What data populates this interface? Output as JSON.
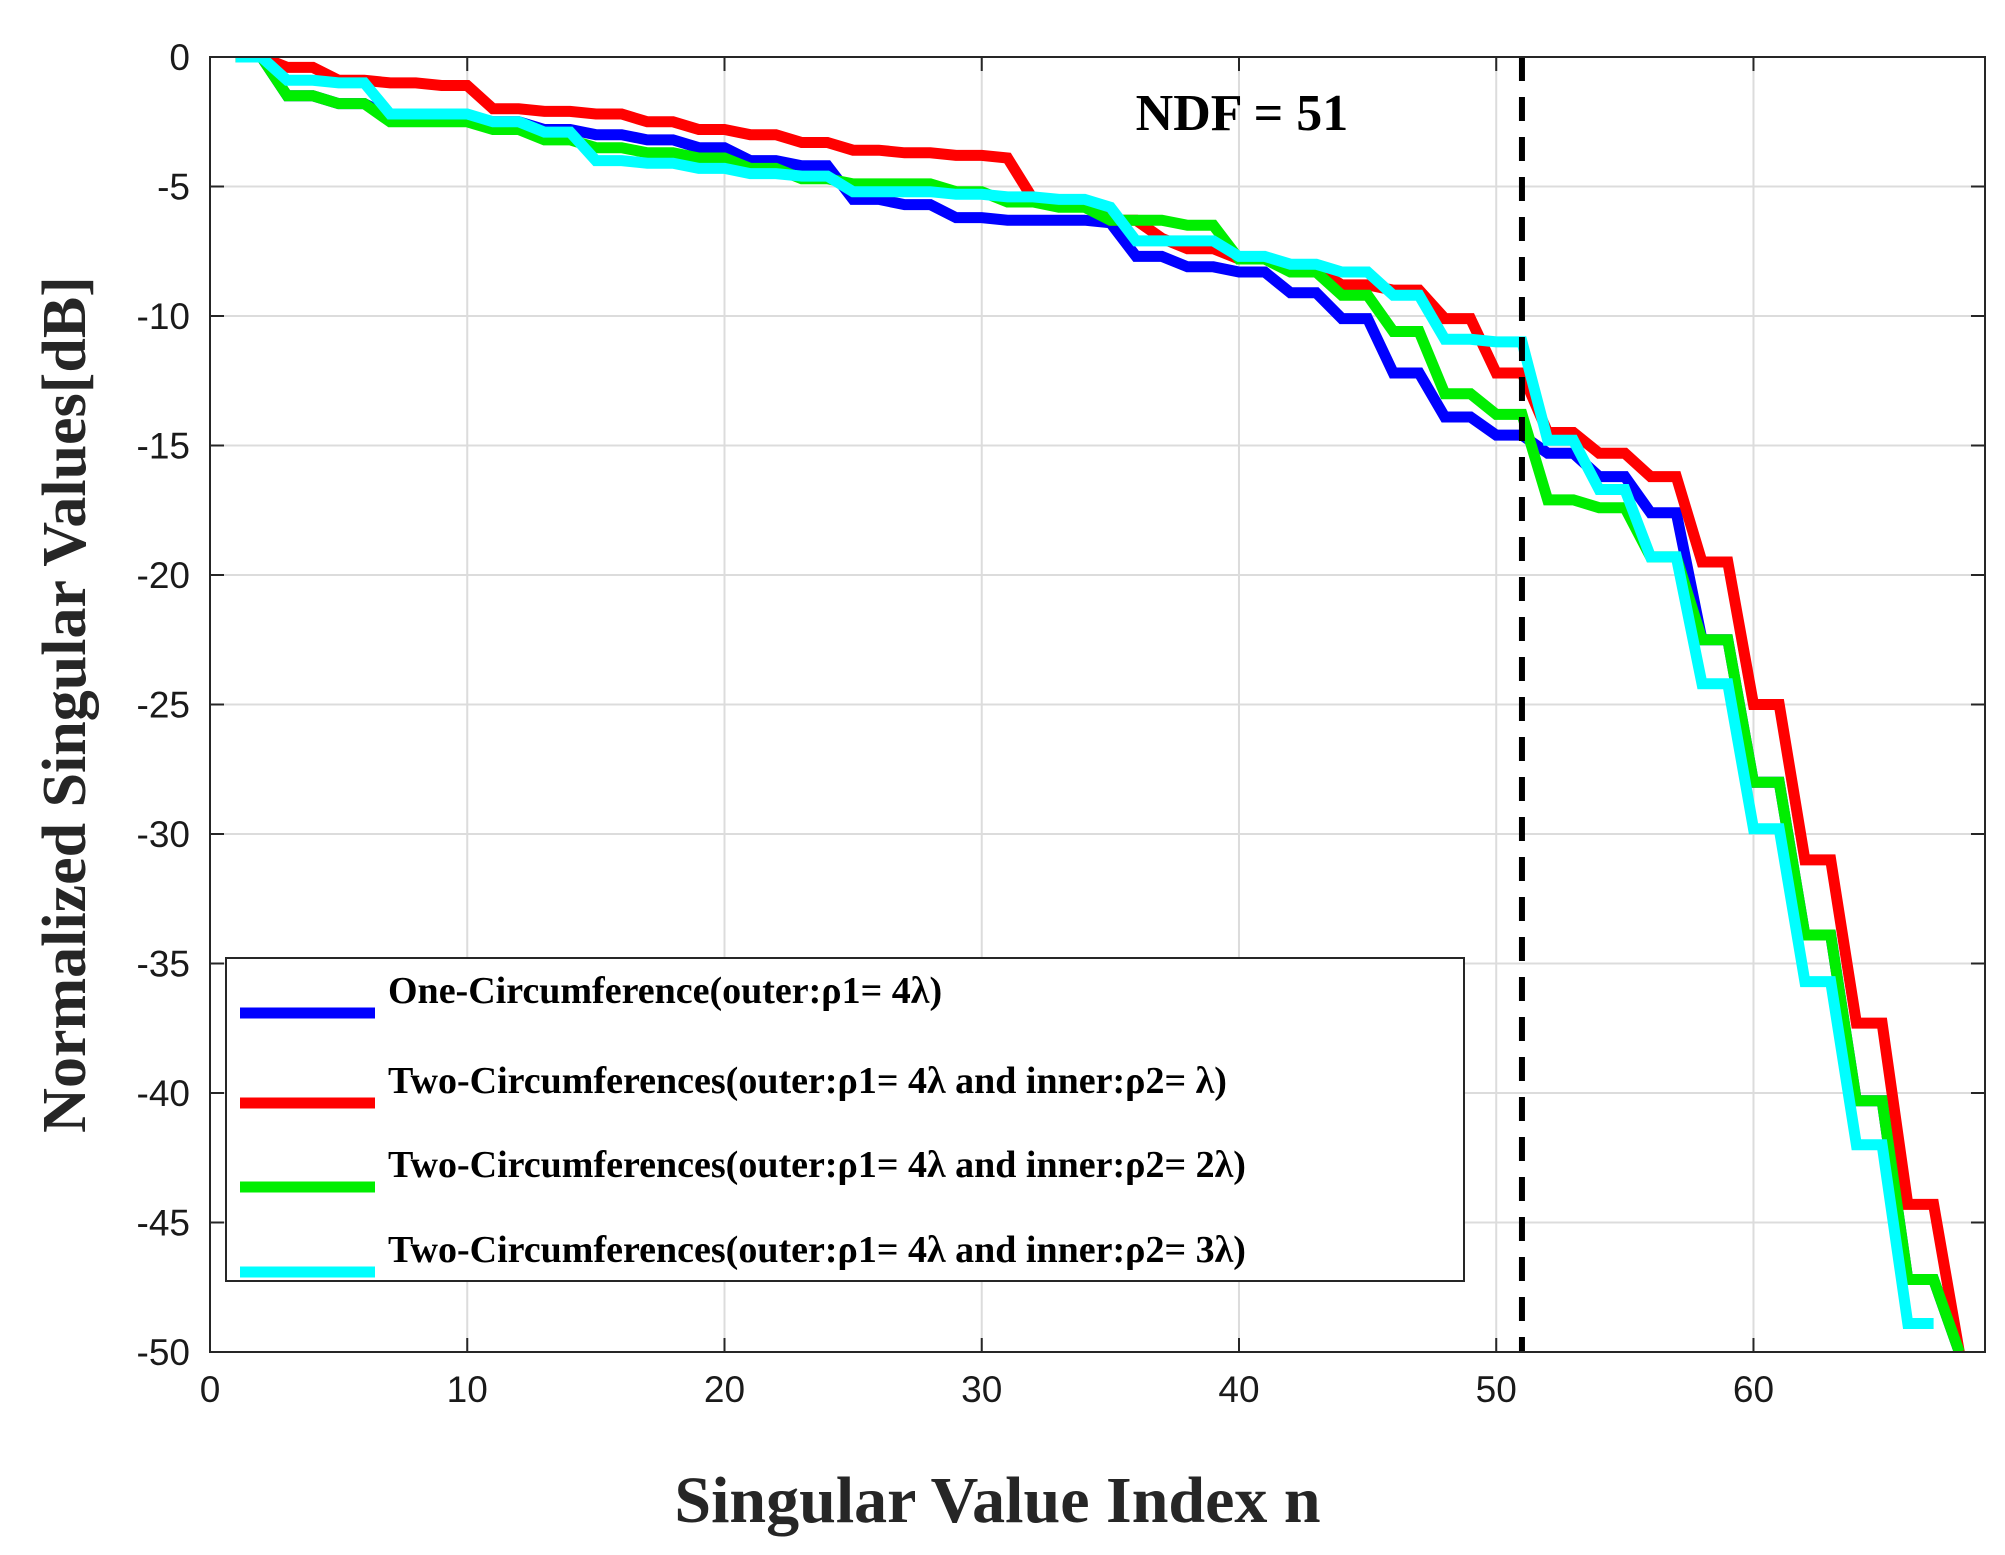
{
  "chart_data": {
    "type": "line",
    "xlabel": "Singular Value Index n",
    "ylabel": "Normalized Singular Values[dB]",
    "xlim": [
      0,
      69
    ],
    "ylim": [
      -50,
      0
    ],
    "xticks": [
      0,
      10,
      20,
      30,
      40,
      50,
      60
    ],
    "yticks": [
      0,
      -5,
      -10,
      -15,
      -20,
      -25,
      -30,
      -35,
      -40,
      -45,
      -50
    ],
    "grid": true,
    "legend_position": "bottom-left",
    "annotation": {
      "text": "NDF = 51",
      "x": 51
    },
    "reference_line": {
      "x": 51,
      "style": "dashed",
      "color": "#000000"
    },
    "series": [
      {
        "name": "One-Circumference(outer:ρ1= 4λ)",
        "color": "#0000ff",
        "x": [
          1,
          2,
          3,
          4,
          5,
          6,
          7,
          8,
          9,
          10,
          11,
          12,
          13,
          14,
          15,
          16,
          17,
          18,
          19,
          20,
          21,
          22,
          23,
          24,
          25,
          26,
          27,
          28,
          29,
          30,
          31,
          32,
          33,
          34,
          35,
          36,
          37,
          38,
          39,
          40,
          41,
          42,
          43,
          44,
          45,
          46,
          47,
          48,
          49,
          50,
          51,
          52,
          53,
          54,
          55,
          56,
          57,
          58,
          59,
          60,
          61,
          62,
          63,
          64,
          65,
          66,
          67,
          68
        ],
        "values": [
          0,
          0,
          -1.5,
          -1.5,
          -1.8,
          -1.8,
          -2.3,
          -2.3,
          -2.3,
          -2.3,
          -2.5,
          -2.5,
          -2.8,
          -2.8,
          -3.0,
          -3.0,
          -3.2,
          -3.2,
          -3.5,
          -3.5,
          -4.0,
          -4.0,
          -4.2,
          -4.2,
          -5.5,
          -5.5,
          -5.7,
          -5.7,
          -6.2,
          -6.2,
          -6.3,
          -6.3,
          -6.3,
          -6.3,
          -6.4,
          -7.7,
          -7.7,
          -8.1,
          -8.1,
          -8.3,
          -8.3,
          -9.1,
          -9.1,
          -10.1,
          -10.1,
          -12.2,
          -12.2,
          -13.9,
          -13.9,
          -14.6,
          -14.6,
          -15.3,
          -15.3,
          -16.2,
          -16.2,
          -17.6,
          -17.6,
          -22.5,
          -22.5,
          -28.0,
          -28.0,
          -33.9,
          -33.9,
          -40.3,
          -40.3,
          -47.2,
          -47.2,
          -50
        ]
      },
      {
        "name": "Two-Circumferences(outer:ρ1= 4λ and inner:ρ2= λ)",
        "color": "#ff0000",
        "x": [
          1,
          2,
          3,
          4,
          5,
          6,
          7,
          8,
          9,
          10,
          11,
          12,
          13,
          14,
          15,
          16,
          17,
          18,
          19,
          20,
          21,
          22,
          23,
          24,
          25,
          26,
          27,
          28,
          29,
          30,
          31,
          32,
          33,
          34,
          35,
          36,
          37,
          38,
          39,
          40,
          41,
          42,
          43,
          44,
          45,
          46,
          47,
          48,
          49,
          50,
          51,
          52,
          53,
          54,
          55,
          56,
          57,
          58,
          59,
          60,
          61,
          62,
          63,
          64,
          65,
          66,
          67,
          68
        ],
        "values": [
          0,
          0,
          -0.4,
          -0.4,
          -0.9,
          -0.9,
          -1.0,
          -1.0,
          -1.1,
          -1.1,
          -2.0,
          -2.0,
          -2.1,
          -2.1,
          -2.2,
          -2.2,
          -2.5,
          -2.5,
          -2.8,
          -2.8,
          -3.0,
          -3.0,
          -3.3,
          -3.3,
          -3.6,
          -3.6,
          -3.7,
          -3.7,
          -3.8,
          -3.8,
          -3.9,
          -5.5,
          -5.7,
          -5.7,
          -6.3,
          -6.3,
          -7.0,
          -7.4,
          -7.4,
          -7.8,
          -7.8,
          -8.2,
          -8.2,
          -8.8,
          -8.8,
          -9.0,
          -9.0,
          -10.1,
          -10.1,
          -12.2,
          -12.2,
          -14.5,
          -14.5,
          -15.3,
          -15.3,
          -16.2,
          -16.2,
          -19.5,
          -19.5,
          -25.0,
          -25.0,
          -31.0,
          -31.0,
          -37.3,
          -37.3,
          -44.3,
          -44.3,
          -50
        ]
      },
      {
        "name": "Two-Circumferences(outer:ρ1= 4λ and inner:ρ2= 2λ)",
        "color": "#00ee00",
        "x": [
          1,
          2,
          3,
          4,
          5,
          6,
          7,
          8,
          9,
          10,
          11,
          12,
          13,
          14,
          15,
          16,
          17,
          18,
          19,
          20,
          21,
          22,
          23,
          24,
          25,
          26,
          27,
          28,
          29,
          30,
          31,
          32,
          33,
          34,
          35,
          36,
          37,
          38,
          39,
          40,
          41,
          42,
          43,
          44,
          45,
          46,
          47,
          48,
          49,
          50,
          51,
          52,
          53,
          54,
          55,
          56,
          57,
          58,
          59,
          60,
          61,
          62,
          63,
          64,
          65,
          66,
          67,
          68
        ],
        "values": [
          0,
          0,
          -1.5,
          -1.5,
          -1.8,
          -1.8,
          -2.5,
          -2.5,
          -2.5,
          -2.5,
          -2.8,
          -2.8,
          -3.2,
          -3.2,
          -3.5,
          -3.5,
          -3.7,
          -3.7,
          -3.9,
          -3.9,
          -4.3,
          -4.3,
          -4.7,
          -4.7,
          -4.9,
          -4.9,
          -4.9,
          -4.9,
          -5.2,
          -5.2,
          -5.6,
          -5.6,
          -5.8,
          -5.8,
          -6.3,
          -6.3,
          -6.3,
          -6.5,
          -6.5,
          -7.8,
          -7.8,
          -8.3,
          -8.3,
          -9.2,
          -9.2,
          -10.6,
          -10.6,
          -13.0,
          -13.0,
          -13.8,
          -13.8,
          -17.1,
          -17.1,
          -17.4,
          -17.4,
          -19.3,
          -19.3,
          -22.5,
          -22.5,
          -28.0,
          -28.0,
          -33.9,
          -33.9,
          -40.3,
          -40.3,
          -47.2,
          -47.2,
          -50
        ]
      },
      {
        "name": "Two-Circumferences(outer:ρ1= 4λ and inner:ρ2= 3λ)",
        "color": "#00ffff",
        "x": [
          1,
          2,
          3,
          4,
          5,
          6,
          7,
          8,
          9,
          10,
          11,
          12,
          13,
          14,
          15,
          16,
          17,
          18,
          19,
          20,
          21,
          22,
          23,
          24,
          25,
          26,
          27,
          28,
          29,
          30,
          31,
          32,
          33,
          34,
          35,
          36,
          37,
          38,
          39,
          40,
          41,
          42,
          43,
          44,
          45,
          46,
          47,
          48,
          49,
          50,
          51,
          52,
          53,
          54,
          55,
          56,
          57,
          58,
          59,
          60,
          61,
          62,
          63,
          64,
          65,
          66,
          67
        ],
        "values": [
          0,
          0,
          -0.9,
          -0.9,
          -1.0,
          -1.0,
          -2.2,
          -2.2,
          -2.2,
          -2.2,
          -2.5,
          -2.5,
          -2.9,
          -2.9,
          -4.0,
          -4.0,
          -4.1,
          -4.1,
          -4.3,
          -4.3,
          -4.5,
          -4.5,
          -4.6,
          -4.6,
          -5.2,
          -5.2,
          -5.2,
          -5.2,
          -5.3,
          -5.3,
          -5.4,
          -5.4,
          -5.5,
          -5.5,
          -5.8,
          -7.1,
          -7.1,
          -7.1,
          -7.1,
          -7.7,
          -7.7,
          -8.0,
          -8.0,
          -8.3,
          -8.3,
          -9.2,
          -9.2,
          -10.9,
          -10.9,
          -11.0,
          -11.0,
          -14.8,
          -14.8,
          -16.7,
          -16.7,
          -19.3,
          -19.3,
          -24.2,
          -24.2,
          -29.8,
          -29.8,
          -35.7,
          -35.7,
          -42.0,
          -42.0,
          -48.9,
          -48.9
        ]
      }
    ]
  }
}
